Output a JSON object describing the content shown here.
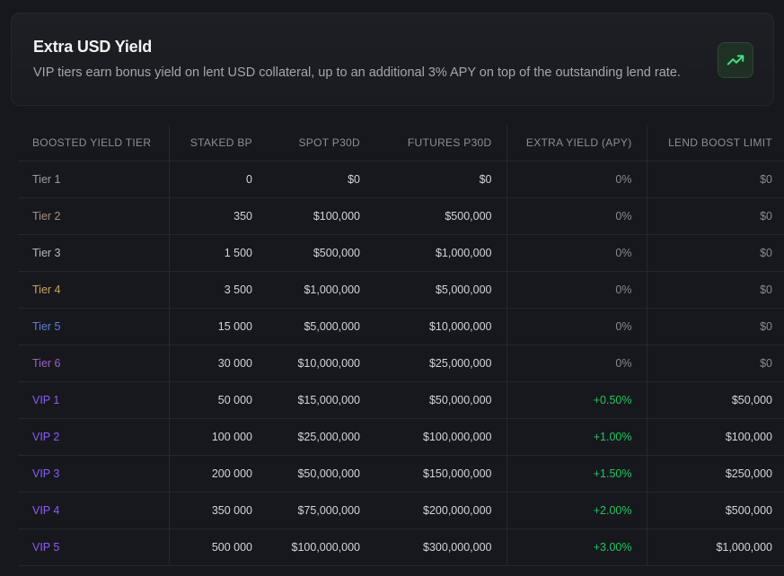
{
  "card": {
    "title": "Extra USD Yield",
    "description": "VIP tiers earn bonus yield on lent USD collateral, up to an additional 3% APY on top of the outstanding lend rate.",
    "icon": "trending-up-icon",
    "icon_color": "#4ade80"
  },
  "colors": {
    "positive": "#22c55e",
    "tier1": "#9a9da6",
    "tier2": "#a58f82",
    "tier3": "#b7b9c0",
    "tier4": "#c9a35c",
    "tier5": "#5b7fd1",
    "tier6": "#a05fc2",
    "vip": "#8b5cf6"
  },
  "table": {
    "headers": [
      "BOOSTED YIELD TIER",
      "STAKED BP",
      "SPOT P30D",
      "FUTURES P30D",
      "EXTRA YIELD (APY)",
      "LEND BOOST LIMIT"
    ],
    "rows": [
      {
        "tier": "Tier 1",
        "staked": "0",
        "spot": "$0",
        "futures": "$0",
        "extra": "0%",
        "limit": "$0",
        "color": "#9a9da6"
      },
      {
        "tier": "Tier 2",
        "staked": "350",
        "spot": "$100,000",
        "futures": "$500,000",
        "extra": "0%",
        "limit": "$0",
        "color": "#a58f82"
      },
      {
        "tier": "Tier 3",
        "staked": "1 500",
        "spot": "$500,000",
        "futures": "$1,000,000",
        "extra": "0%",
        "limit": "$0",
        "color": "#b7b9c0"
      },
      {
        "tier": "Tier 4",
        "staked": "3 500",
        "spot": "$1,000,000",
        "futures": "$5,000,000",
        "extra": "0%",
        "limit": "$0",
        "color": "#c9a35c"
      },
      {
        "tier": "Tier 5",
        "staked": "15 000",
        "spot": "$5,000,000",
        "futures": "$10,000,000",
        "extra": "0%",
        "limit": "$0",
        "color": "#5b7fd1"
      },
      {
        "tier": "Tier 6",
        "staked": "30 000",
        "spot": "$10,000,000",
        "futures": "$25,000,000",
        "extra": "0%",
        "limit": "$0",
        "color": "#a05fc2"
      },
      {
        "tier": "VIP 1",
        "staked": "50 000",
        "spot": "$15,000,000",
        "futures": "$50,000,000",
        "extra": "+0.50%",
        "limit": "$50,000",
        "color": "#8b5cf6"
      },
      {
        "tier": "VIP 2",
        "staked": "100 000",
        "spot": "$25,000,000",
        "futures": "$100,000,000",
        "extra": "+1.00%",
        "limit": "$100,000",
        "color": "#8b5cf6"
      },
      {
        "tier": "VIP 3",
        "staked": "200 000",
        "spot": "$50,000,000",
        "futures": "$150,000,000",
        "extra": "+1.50%",
        "limit": "$250,000",
        "color": "#8b5cf6"
      },
      {
        "tier": "VIP 4",
        "staked": "350 000",
        "spot": "$75,000,000",
        "futures": "$200,000,000",
        "extra": "+2.00%",
        "limit": "$500,000",
        "color": "#8b5cf6"
      },
      {
        "tier": "VIP 5",
        "staked": "500 000",
        "spot": "$100,000,000",
        "futures": "$300,000,000",
        "extra": "+3.00%",
        "limit": "$1,000,000",
        "color": "#8b5cf6"
      }
    ]
  }
}
